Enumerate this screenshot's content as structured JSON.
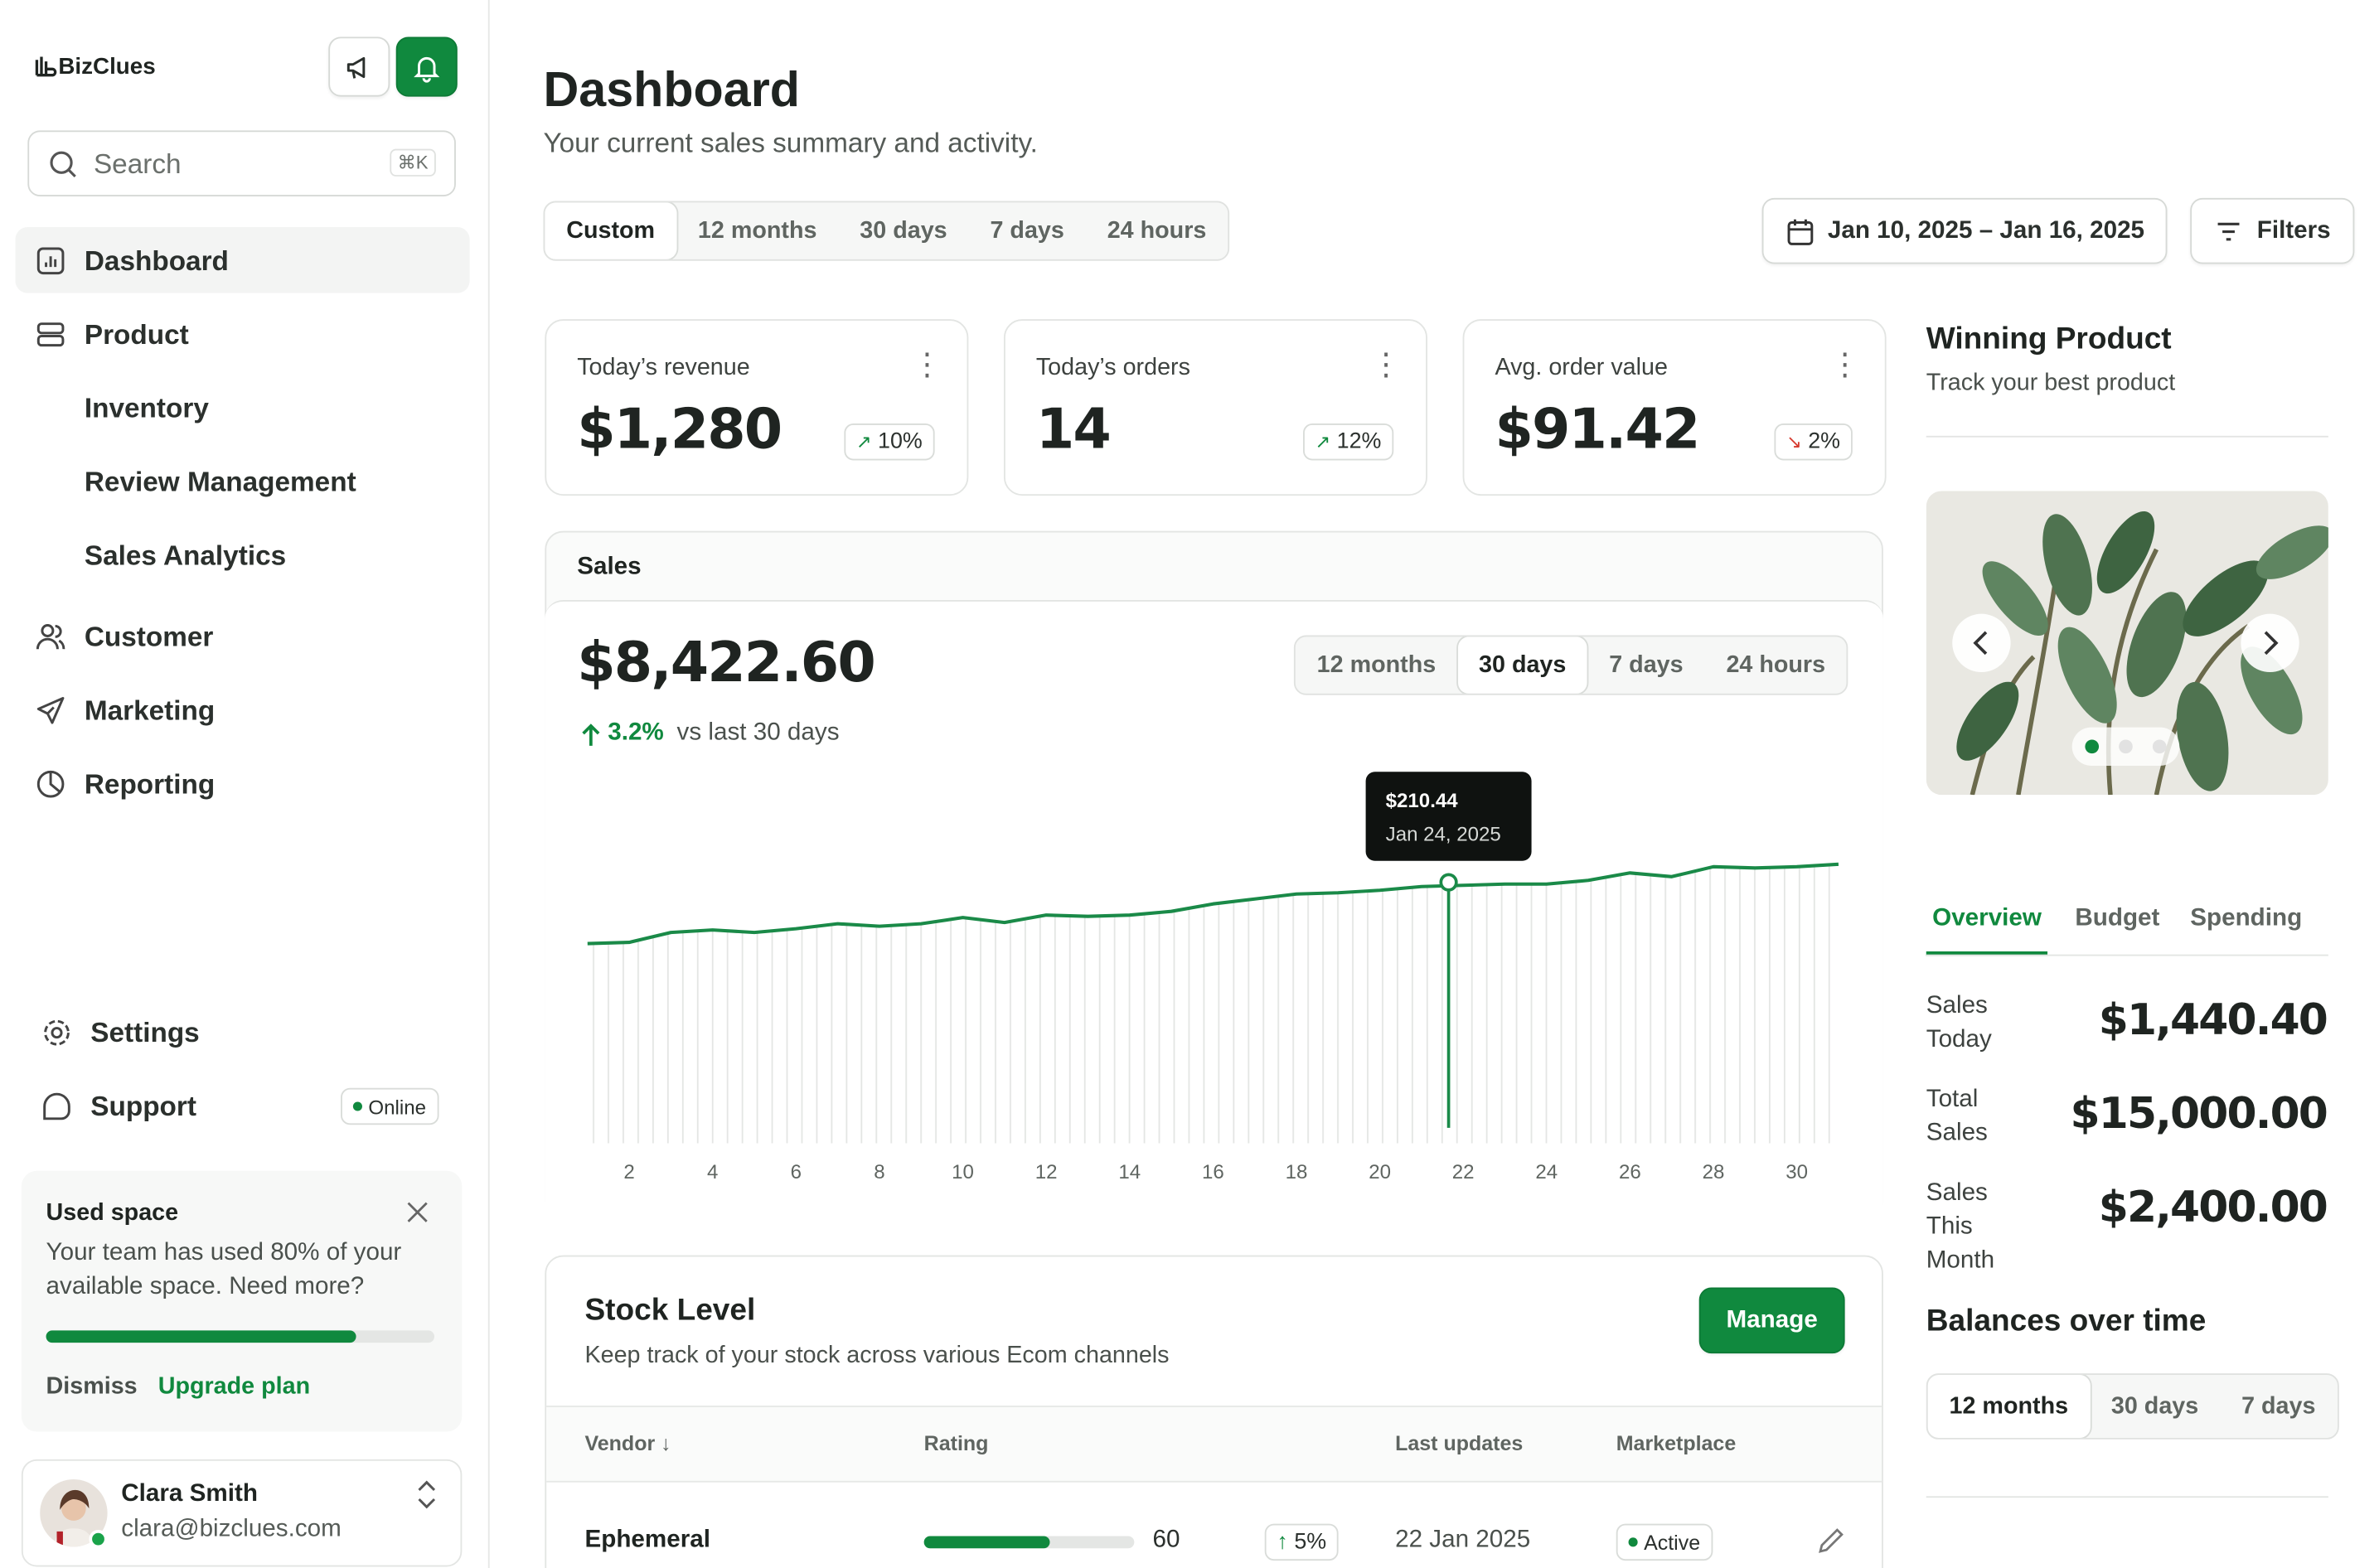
{
  "sidebar": {
    "brand": "BizClues",
    "search_placeholder": "Search",
    "search_shortcut": "⌘K",
    "nav": [
      "Dashboard",
      "Product",
      "Inventory",
      "Review Management",
      "Sales Analytics",
      "Customer",
      "Marketing",
      "Reporting"
    ],
    "footer_nav": [
      "Settings",
      "Support"
    ],
    "status": "Online",
    "usage_card": {
      "title": "Used space",
      "text": "Your team has used 80% of your available space. Need more?",
      "progress": 80,
      "dismiss": "Dismiss",
      "upgrade": "Upgrade plan"
    },
    "user": {
      "name": "Clara Smith",
      "email": "clara@bizclues.com"
    }
  },
  "header": {
    "title": "Dashboard",
    "subtitle": "Your current sales summary and activity.",
    "ranges": [
      "Custom",
      "12 months",
      "30 days",
      "7 days",
      "24 hours"
    ],
    "date_range": "Jan 10, 2025 – Jan 16, 2025",
    "filters": "Filters"
  },
  "kpis": [
    {
      "label": "Today’s revenue",
      "value": "$1,280",
      "change": "10%",
      "trend": "up"
    },
    {
      "label": "Today’s orders",
      "value": "14",
      "change": "12%",
      "trend": "up"
    },
    {
      "label": "Avg. order value",
      "value": "$91.42",
      "change": "2%",
      "trend": "down"
    }
  ],
  "sales_card": {
    "title": "Sales",
    "total": "$8,422.60",
    "change": "3.2%",
    "comparison": "vs last 30 days",
    "ranges": [
      "12 months",
      "30 days",
      "7 days",
      "24 hours"
    ],
    "active_range": 1
  },
  "chart_data": {
    "type": "line",
    "x": [
      1,
      2,
      3,
      4,
      5,
      6,
      7,
      8,
      9,
      10,
      11,
      12,
      13,
      14,
      15,
      16,
      17,
      18,
      19,
      20,
      21,
      22,
      23,
      24,
      25,
      26,
      27,
      28,
      29,
      30,
      31
    ],
    "values": [
      161,
      162,
      170,
      172,
      170,
      173,
      177,
      175,
      177,
      182,
      178,
      184,
      183,
      184,
      187,
      193,
      197,
      201,
      202,
      204,
      207,
      208,
      209,
      209,
      212,
      218,
      215,
      223,
      222,
      223,
      225
    ],
    "color": "#1a8a48",
    "xlim": [
      0.75,
      31.3
    ],
    "ylim": [
      0,
      276
    ],
    "xticks": [
      2,
      4,
      6,
      8,
      10,
      12,
      14,
      16,
      18,
      20,
      22,
      24,
      26,
      28,
      30
    ],
    "annotation": {
      "x": 21.65,
      "value": 210.44,
      "label": "$210.44",
      "date": "Jan 24, 2025"
    }
  },
  "stock": {
    "title": "Stock Level",
    "subtitle": "Keep track of your stock across various Ecom channels",
    "button": "Manage",
    "columns": [
      "Vendor",
      "Rating",
      "Last updates",
      "Marketplace"
    ],
    "rows": [
      {
        "vendor": "Ephemeral",
        "rating": 60,
        "change": "5%",
        "updated": "22 Jan 2025",
        "status": "Active"
      }
    ]
  },
  "winning": {
    "title": "Winning Product",
    "subtitle": "Track your best product",
    "tabs": [
      "Overview",
      "Budget",
      "Spending"
    ],
    "active_tab": 0,
    "stats": [
      {
        "label": "Sales Today",
        "value": "$1,440.40"
      },
      {
        "label": "Total Sales",
        "value": "$15,000.00"
      },
      {
        "label": "Sales This Month",
        "value": "$2,400.00"
      }
    ]
  },
  "balances": {
    "title": "Balances over time",
    "ranges": [
      "12 months",
      "30 days",
      "7 days"
    ],
    "active_range": 0
  }
}
